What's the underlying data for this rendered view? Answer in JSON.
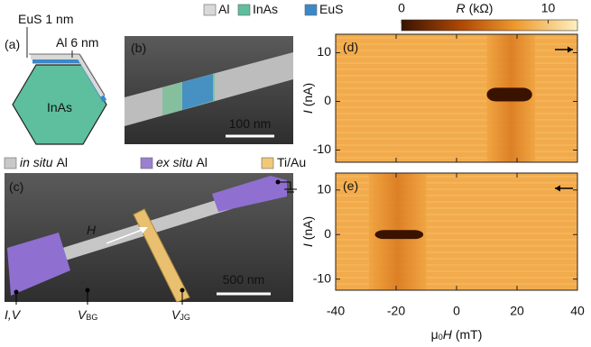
{
  "panel_a": {
    "label": "(a)",
    "layer_labels": [
      "EuS 1 nm",
      "Al 6 nm"
    ],
    "core_label": "InAs"
  },
  "legend_materials": [
    {
      "name": "Al",
      "color": "#d9d9d9"
    },
    {
      "name": "InAs",
      "color": "#5dbf9d"
    },
    {
      "name": "EuS",
      "color": "#3b88c8"
    }
  ],
  "panel_b": {
    "label": "(b)",
    "scale_bar": "100 nm"
  },
  "legend_device": [
    {
      "italic": "in situ",
      "text": "Al",
      "color": "#c8c8c8"
    },
    {
      "italic": "ex situ",
      "text": "Al",
      "color": "#9b7fd0"
    },
    {
      "italic": "",
      "text": "Ti/Au",
      "color": "#f0c878"
    }
  ],
  "panel_c": {
    "label": "(c)",
    "field": "H",
    "scale_bar": "500 nm",
    "contacts": [
      {
        "main": "I,V",
        "sub": ""
      },
      {
        "main": "V",
        "sub": "BG"
      },
      {
        "main": "V",
        "sub": "JG"
      }
    ]
  },
  "colorbar": {
    "var": "R",
    "unit": "(kΩ)",
    "lim": [
      0,
      12
    ],
    "ticks": [
      0,
      10
    ]
  },
  "xlabel": {
    "prefix": "μ",
    "sub": "0",
    "var": "H",
    "unit": "(mT)"
  },
  "ylabel": {
    "var": "I",
    "unit": "(nA)"
  },
  "xlim": [
    -40,
    40
  ],
  "xticks": [
    -40,
    -20,
    0,
    20,
    40
  ],
  "ylim": [
    -12.5,
    13.8
  ],
  "yticks": [
    -10,
    0,
    10
  ],
  "plots": [
    {
      "label": "(d)",
      "sweep": "right",
      "band_x": [
        10,
        26
      ],
      "blob_x": [
        10,
        25
      ],
      "blob_y": [
        0,
        2.8
      ]
    },
    {
      "label": "(e)",
      "sweep": "left",
      "band_x": [
        -29,
        -10
      ],
      "blob_x": [
        -27,
        -11
      ],
      "blob_y": [
        -1,
        1
      ]
    }
  ]
}
